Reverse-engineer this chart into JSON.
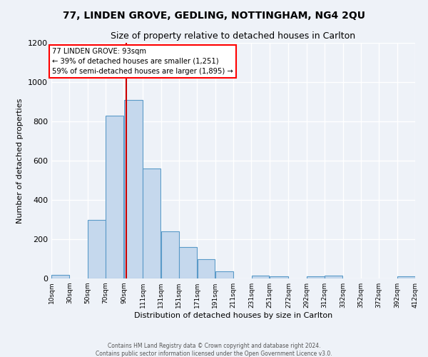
{
  "title1": "77, LINDEN GROVE, GEDLING, NOTTINGHAM, NG4 2QU",
  "title2": "Size of property relative to detached houses in Carlton",
  "xlabel": "Distribution of detached houses by size in Carlton",
  "ylabel": "Number of detached properties",
  "footer1": "Contains HM Land Registry data © Crown copyright and database right 2024.",
  "footer2": "Contains public sector information licensed under the Open Government Licence v3.0.",
  "bar_left_edges": [
    10,
    30,
    50,
    70,
    90,
    111,
    131,
    151,
    171,
    191,
    211,
    231,
    251,
    272,
    292,
    312,
    332,
    352,
    372,
    392
  ],
  "bar_widths": [
    20,
    20,
    20,
    20,
    21,
    20,
    20,
    20,
    20,
    20,
    20,
    20,
    21,
    20,
    20,
    20,
    20,
    20,
    20,
    20
  ],
  "bar_heights": [
    20,
    0,
    300,
    830,
    910,
    560,
    240,
    160,
    100,
    35,
    0,
    15,
    10,
    0,
    10,
    15,
    0,
    0,
    0,
    10
  ],
  "tick_labels": [
    "10sqm",
    "30sqm",
    "50sqm",
    "70sqm",
    "90sqm",
    "111sqm",
    "131sqm",
    "151sqm",
    "171sqm",
    "191sqm",
    "211sqm",
    "231sqm",
    "251sqm",
    "272sqm",
    "292sqm",
    "312sqm",
    "332sqm",
    "352sqm",
    "372sqm",
    "392sqm",
    "412sqm"
  ],
  "tick_positions": [
    10,
    30,
    50,
    70,
    90,
    111,
    131,
    151,
    171,
    191,
    211,
    231,
    251,
    272,
    292,
    312,
    332,
    352,
    372,
    392,
    412
  ],
  "xlim": [
    10,
    412
  ],
  "ylim": [
    0,
    1200
  ],
  "yticks": [
    0,
    200,
    400,
    600,
    800,
    1000,
    1200
  ],
  "bar_color": "#c5d8ed",
  "bar_edge_color": "#5a9ac8",
  "vline_x": 93,
  "vline_color": "#cc0000",
  "annotation_line1": "77 LINDEN GROVE: 93sqm",
  "annotation_line2": "← 39% of detached houses are smaller (1,251)",
  "annotation_line3": "59% of semi-detached houses are larger (1,895) →",
  "background_color": "#eef2f8",
  "grid_color": "#ffffff",
  "title1_fontsize": 10,
  "title2_fontsize": 9,
  "xlabel_fontsize": 8,
  "ylabel_fontsize": 8,
  "xtick_fontsize": 6.5,
  "ytick_fontsize": 8,
  "footer_fontsize": 5.5
}
